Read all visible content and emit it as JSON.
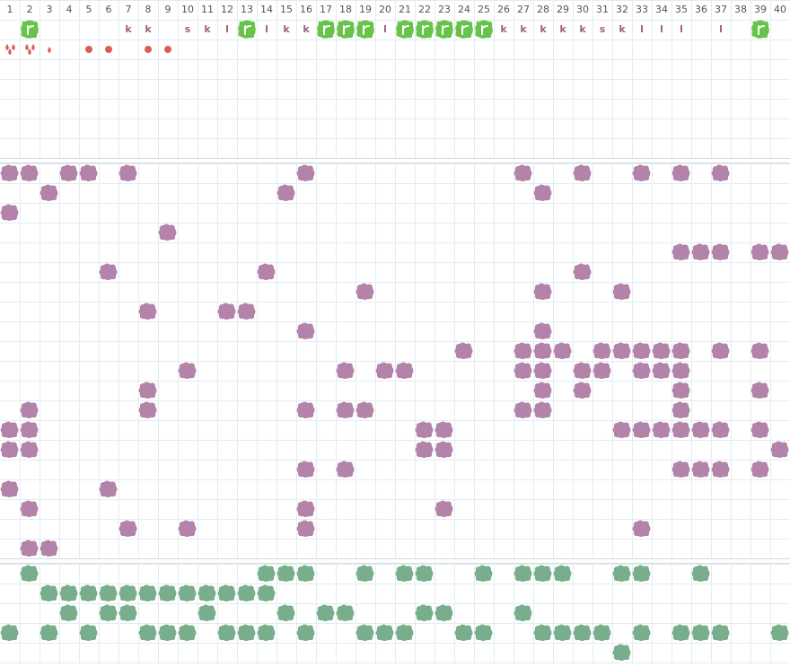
{
  "columns": [
    "1",
    "2",
    "3",
    "4",
    "5",
    "6",
    "7",
    "8",
    "9",
    "10",
    "11",
    "12",
    "13",
    "14",
    "15",
    "16",
    "17",
    "18",
    "19",
    "20",
    "21",
    "22",
    "23",
    "24",
    "25",
    "26",
    "27",
    "28",
    "29",
    "30",
    "31",
    "32",
    "33",
    "34",
    "35",
    "36",
    "37",
    "38",
    "39",
    "40"
  ],
  "top_row": [
    null,
    null,
    null,
    null,
    null,
    null,
    "k",
    "k",
    null,
    "s",
    "k",
    "l",
    null,
    "l",
    "k",
    "k",
    null,
    null,
    null,
    "l",
    null,
    null,
    null,
    null,
    null,
    "k",
    "k",
    "k",
    "k",
    "k",
    "s",
    "k",
    "l",
    "l",
    "l",
    null,
    "l",
    null,
    null,
    null
  ]
}
